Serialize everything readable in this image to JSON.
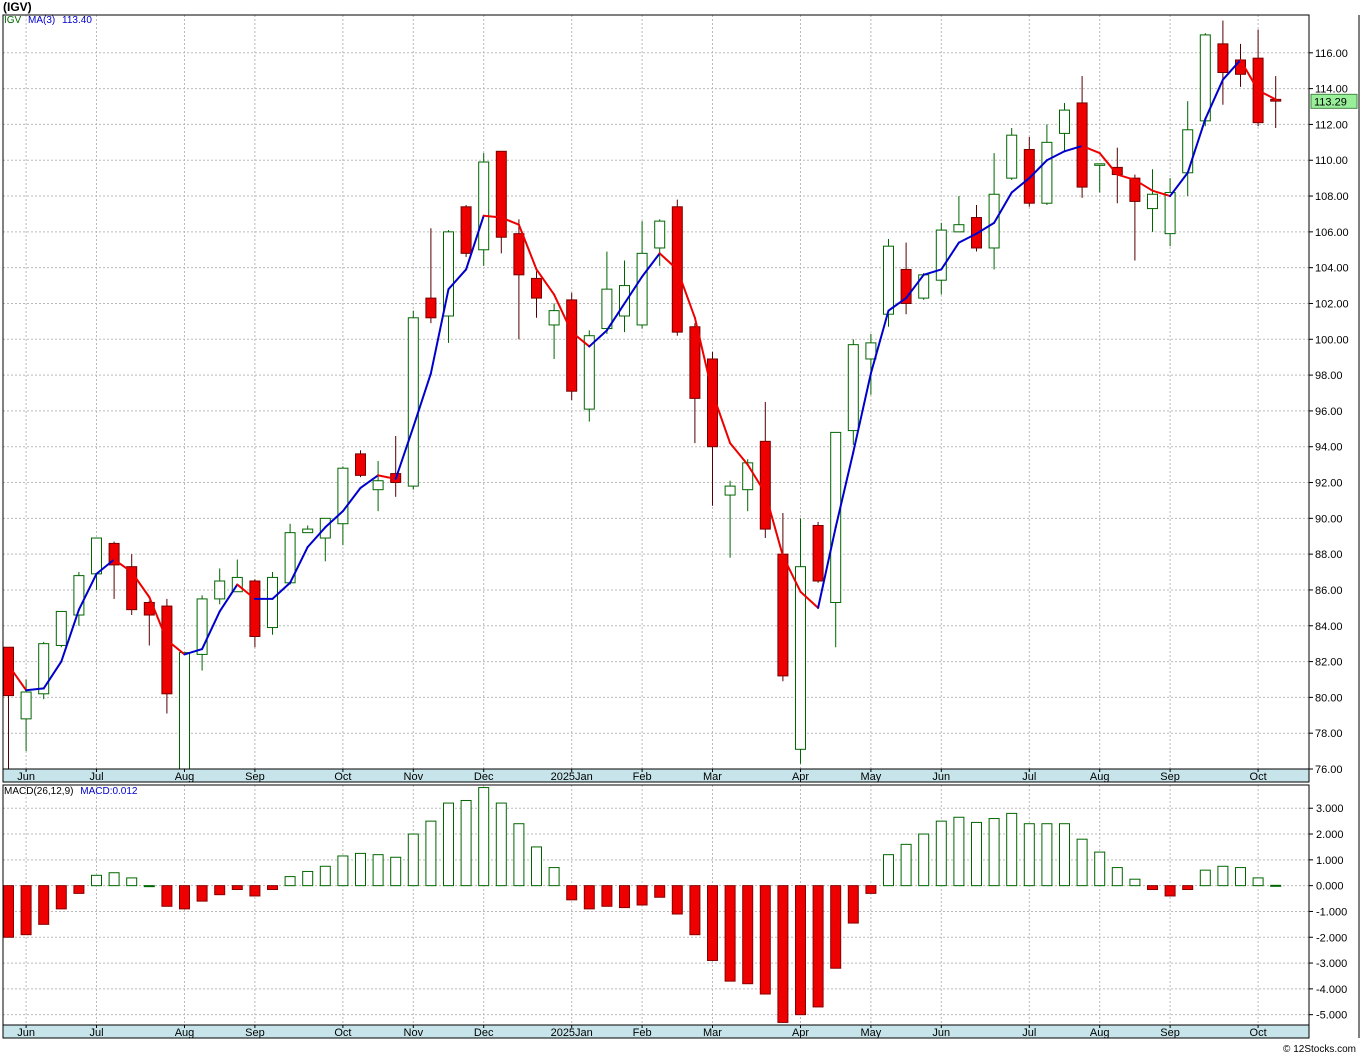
{
  "title": "(IGV)",
  "copyright": "© 12Stocks.com",
  "colors": {
    "up": "#ffffff",
    "up_border": "#006600",
    "down": "#ee0000",
    "ma_up": "#0000cc",
    "ma_down": "#ee0000",
    "axis_bg": "#c7e4ea",
    "last_bg": "#99ee99"
  },
  "price_panel": {
    "legend": {
      "symbol": "IGV",
      "ma_label": "MA(3)",
      "ma_value": "113.40"
    },
    "last_price": "113.29"
  },
  "macd_panel": {
    "legend": {
      "label": "MACD(26,12,9)",
      "value_label": "MACD:0.012"
    }
  },
  "chart_data": [
    {
      "type": "candlestick",
      "ylim": [
        76,
        118
      ],
      "yticks": [
        76,
        78,
        80,
        82,
        84,
        86,
        88,
        90,
        92,
        94,
        96,
        98,
        100,
        102,
        104,
        106,
        108,
        110,
        112,
        114,
        116
      ],
      "ytick_labels": [
        "76.00",
        "78.00",
        "80.00",
        "82.00",
        "84.00",
        "86.00",
        "88.00",
        "90.00",
        "92.00",
        "94.00",
        "96.00",
        "98.00",
        "100.00",
        "102.00",
        "104.00",
        "106.00",
        "108.00",
        "110.00",
        "112.00",
        "114.00",
        "116.00"
      ],
      "x_labels": [
        {
          "label": "Jun",
          "i": 1
        },
        {
          "label": "Jul",
          "i": 5
        },
        {
          "label": "Aug",
          "i": 10
        },
        {
          "label": "Sep",
          "i": 14
        },
        {
          "label": "Oct",
          "i": 19
        },
        {
          "label": "Nov",
          "i": 23
        },
        {
          "label": "Dec",
          "i": 27
        },
        {
          "label": "2025Jan",
          "i": 32
        },
        {
          "label": "Feb",
          "i": 36
        },
        {
          "label": "Mar",
          "i": 40
        },
        {
          "label": "Apr",
          "i": 45
        },
        {
          "label": "May",
          "i": 49
        },
        {
          "label": "Jun",
          "i": 53
        },
        {
          "label": "Jul",
          "i": 58
        },
        {
          "label": "Aug",
          "i": 62
        },
        {
          "label": "Sep",
          "i": 66
        },
        {
          "label": "Oct",
          "i": 71
        }
      ],
      "candles": [
        {
          "o": 82.8,
          "h": 82.8,
          "l": 76.0,
          "c": 80.1
        },
        {
          "o": 78.8,
          "h": 81.0,
          "l": 77.0,
          "c": 80.3
        },
        {
          "o": 80.2,
          "h": 83.1,
          "l": 79.9,
          "c": 83.0
        },
        {
          "o": 82.9,
          "h": 84.8,
          "l": 82.8,
          "c": 84.8
        },
        {
          "o": 84.6,
          "h": 87.0,
          "l": 84.0,
          "c": 86.8
        },
        {
          "o": 86.9,
          "h": 88.9,
          "l": 86.0,
          "c": 88.9
        },
        {
          "o": 88.6,
          "h": 88.7,
          "l": 85.5,
          "c": 87.4
        },
        {
          "o": 87.3,
          "h": 88.0,
          "l": 84.6,
          "c": 84.9
        },
        {
          "o": 85.3,
          "h": 85.4,
          "l": 82.9,
          "c": 84.6
        },
        {
          "o": 85.1,
          "h": 85.5,
          "l": 79.1,
          "c": 80.2
        },
        {
          "o": 76.0,
          "h": 82.5,
          "l": 76.0,
          "c": 82.5
        },
        {
          "o": 82.4,
          "h": 85.7,
          "l": 81.5,
          "c": 85.5
        },
        {
          "o": 85.5,
          "h": 87.2,
          "l": 85.2,
          "c": 86.5
        },
        {
          "o": 85.9,
          "h": 87.7,
          "l": 86.0,
          "c": 86.7
        },
        {
          "o": 86.5,
          "h": 86.6,
          "l": 82.8,
          "c": 83.4
        },
        {
          "o": 83.9,
          "h": 87.0,
          "l": 83.5,
          "c": 86.7
        },
        {
          "o": 86.4,
          "h": 89.7,
          "l": 86.3,
          "c": 89.2
        },
        {
          "o": 89.2,
          "h": 89.6,
          "l": 89.2,
          "c": 89.4
        },
        {
          "o": 88.9,
          "h": 90.0,
          "l": 87.6,
          "c": 90.0
        },
        {
          "o": 89.7,
          "h": 92.9,
          "l": 88.5,
          "c": 92.8
        },
        {
          "o": 93.6,
          "h": 93.8,
          "l": 92.3,
          "c": 92.4
        },
        {
          "o": 91.6,
          "h": 93.2,
          "l": 90.4,
          "c": 92.1
        },
        {
          "o": 92.5,
          "h": 94.6,
          "l": 91.2,
          "c": 92.0
        },
        {
          "o": 91.8,
          "h": 101.6,
          "l": 91.6,
          "c": 101.2
        },
        {
          "o": 102.3,
          "h": 106.2,
          "l": 100.9,
          "c": 101.2
        },
        {
          "o": 101.3,
          "h": 106.1,
          "l": 99.8,
          "c": 106.0
        },
        {
          "o": 107.4,
          "h": 107.5,
          "l": 104.6,
          "c": 104.8
        },
        {
          "o": 105.0,
          "h": 110.4,
          "l": 104.1,
          "c": 109.9
        },
        {
          "o": 110.5,
          "h": 110.5,
          "l": 104.8,
          "c": 105.7
        },
        {
          "o": 105.9,
          "h": 106.7,
          "l": 100.0,
          "c": 103.6
        },
        {
          "o": 103.4,
          "h": 103.8,
          "l": 101.2,
          "c": 102.3
        },
        {
          "o": 100.8,
          "h": 102.0,
          "l": 98.9,
          "c": 101.6
        },
        {
          "o": 102.2,
          "h": 102.6,
          "l": 96.6,
          "c": 97.1
        },
        {
          "o": 96.1,
          "h": 100.5,
          "l": 95.4,
          "c": 100.2
        },
        {
          "o": 100.6,
          "h": 104.9,
          "l": 100.3,
          "c": 102.8
        },
        {
          "o": 101.3,
          "h": 104.4,
          "l": 100.4,
          "c": 103.0
        },
        {
          "o": 100.8,
          "h": 106.6,
          "l": 100.6,
          "c": 104.8
        },
        {
          "o": 105.1,
          "h": 106.7,
          "l": 104.1,
          "c": 106.6
        },
        {
          "o": 107.4,
          "h": 107.8,
          "l": 100.2,
          "c": 100.4
        },
        {
          "o": 100.7,
          "h": 100.9,
          "l": 94.2,
          "c": 96.7
        },
        {
          "o": 98.9,
          "h": 99.3,
          "l": 90.7,
          "c": 94.0
        },
        {
          "o": 91.3,
          "h": 92.1,
          "l": 87.8,
          "c": 91.8
        },
        {
          "o": 91.6,
          "h": 93.3,
          "l": 90.4,
          "c": 93.1
        },
        {
          "o": 94.3,
          "h": 96.5,
          "l": 88.9,
          "c": 89.4
        },
        {
          "o": 88.0,
          "h": 90.3,
          "l": 80.9,
          "c": 81.2
        },
        {
          "o": 77.1,
          "h": 90.0,
          "l": 76.3,
          "c": 87.3
        },
        {
          "o": 89.6,
          "h": 89.8,
          "l": 86.4,
          "c": 86.5
        },
        {
          "o": 85.3,
          "h": 94.8,
          "l": 82.8,
          "c": 94.8
        },
        {
          "o": 94.9,
          "h": 100.0,
          "l": 94.1,
          "c": 99.7
        },
        {
          "o": 98.9,
          "h": 100.3,
          "l": 96.9,
          "c": 99.8
        },
        {
          "o": 101.4,
          "h": 105.6,
          "l": 100.7,
          "c": 105.2
        },
        {
          "o": 103.9,
          "h": 105.4,
          "l": 101.4,
          "c": 102.0
        },
        {
          "o": 102.3,
          "h": 103.7,
          "l": 102.2,
          "c": 103.6
        },
        {
          "o": 103.3,
          "h": 106.5,
          "l": 102.5,
          "c": 106.1
        },
        {
          "o": 106.0,
          "h": 108.0,
          "l": 106.0,
          "c": 106.4
        },
        {
          "o": 106.8,
          "h": 107.5,
          "l": 104.9,
          "c": 105.1
        },
        {
          "o": 105.1,
          "h": 110.4,
          "l": 103.9,
          "c": 108.1
        },
        {
          "o": 109.0,
          "h": 111.8,
          "l": 108.9,
          "c": 111.4
        },
        {
          "o": 110.6,
          "h": 111.3,
          "l": 107.4,
          "c": 107.6
        },
        {
          "o": 107.6,
          "h": 112.0,
          "l": 107.5,
          "c": 111.0
        },
        {
          "o": 111.5,
          "h": 113.2,
          "l": 110.5,
          "c": 112.8
        },
        {
          "o": 113.2,
          "h": 114.7,
          "l": 107.9,
          "c": 108.5
        },
        {
          "o": 109.8,
          "h": 109.8,
          "l": 108.2,
          "c": 109.8
        },
        {
          "o": 109.6,
          "h": 110.7,
          "l": 107.6,
          "c": 109.2
        },
        {
          "o": 109.0,
          "h": 109.2,
          "l": 104.4,
          "c": 107.7
        },
        {
          "o": 107.3,
          "h": 109.5,
          "l": 106.0,
          "c": 108.1
        },
        {
          "o": 105.9,
          "h": 109.0,
          "l": 105.2,
          "c": 108.2
        },
        {
          "o": 109.3,
          "h": 113.3,
          "l": 108.0,
          "c": 111.7
        },
        {
          "o": 112.2,
          "h": 117.1,
          "l": 111.9,
          "c": 117.0
        },
        {
          "o": 116.5,
          "h": 117.8,
          "l": 113.1,
          "c": 114.9
        },
        {
          "o": 115.6,
          "h": 116.5,
          "l": 114.1,
          "c": 114.8
        },
        {
          "o": 115.7,
          "h": 117.3,
          "l": 111.9,
          "c": 112.1
        },
        {
          "o": 113.4,
          "h": 114.7,
          "l": 111.8,
          "c": 113.3
        }
      ],
      "ma3": [
        81.8,
        80.4,
        80.5,
        82.0,
        84.9,
        86.9,
        87.7,
        87.0,
        85.6,
        83.2,
        82.4,
        82.7,
        84.8,
        86.3,
        85.5,
        85.5,
        86.4,
        88.4,
        89.5,
        90.4,
        91.7,
        92.4,
        92.2,
        95.1,
        98.1,
        102.8,
        103.9,
        106.9,
        106.8,
        106.4,
        103.9,
        102.5,
        100.4,
        99.6,
        100.5,
        102.0,
        103.5,
        104.8,
        103.9,
        101.2,
        97.0,
        94.2,
        93.0,
        91.4,
        87.9,
        85.9,
        85.0,
        89.5,
        93.7,
        98.1,
        101.6,
        102.3,
        103.6,
        103.9,
        105.4,
        105.9,
        106.5,
        108.2,
        109.0,
        110.0,
        110.5,
        110.8,
        110.4,
        109.2,
        108.9,
        108.3,
        108.0,
        109.3,
        112.3,
        114.5,
        115.6,
        113.9,
        113.4
      ],
      "ma_color_split_rule": "blue when rising, red when falling"
    },
    {
      "type": "bar",
      "title": "MACD(26,12,9)",
      "ylim": [
        -5.4,
        3.9
      ],
      "yticks": [
        -5,
        -4,
        -3,
        -2,
        -1,
        0,
        1,
        2,
        3
      ],
      "ytick_labels": [
        "-5.000",
        "-4.000",
        "-3.000",
        "-2.000",
        "-1.000",
        "0.000",
        "1.000",
        "2.000",
        "3.000"
      ],
      "values": [
        -2.0,
        -1.9,
        -1.5,
        -0.9,
        -0.3,
        0.4,
        0.5,
        0.3,
        0.0,
        -0.8,
        -0.9,
        -0.6,
        -0.35,
        -0.15,
        -0.4,
        -0.15,
        0.35,
        0.55,
        0.75,
        1.15,
        1.25,
        1.2,
        1.1,
        2.0,
        2.5,
        3.2,
        3.3,
        3.8,
        3.2,
        2.4,
        1.5,
        0.7,
        -0.55,
        -0.9,
        -0.8,
        -0.85,
        -0.75,
        -0.45,
        -1.1,
        -1.9,
        -2.9,
        -3.7,
        -3.8,
        -4.2,
        -5.3,
        -5.0,
        -4.7,
        -3.2,
        -1.45,
        -0.3,
        1.2,
        1.6,
        2.0,
        2.5,
        2.65,
        2.45,
        2.6,
        2.8,
        2.4,
        2.4,
        2.4,
        1.8,
        1.3,
        0.7,
        0.25,
        -0.15,
        -0.4,
        -0.15,
        0.6,
        0.75,
        0.7,
        0.3,
        0.012
      ]
    }
  ]
}
